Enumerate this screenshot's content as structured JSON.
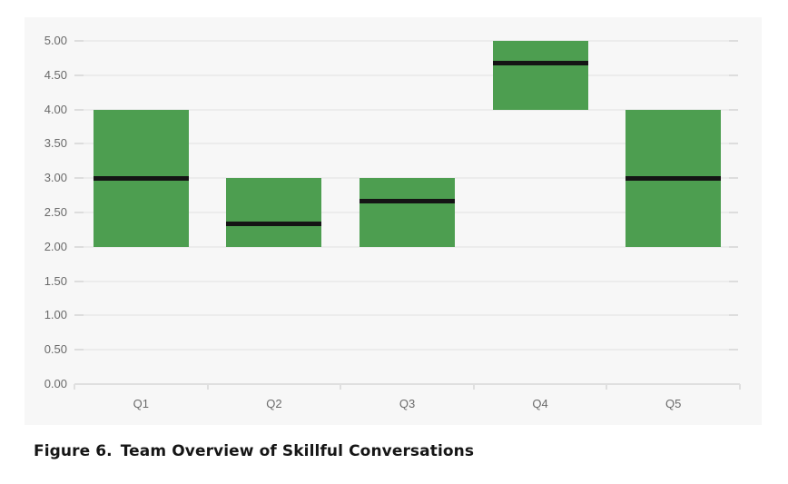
{
  "figure": {
    "label": "Figure 6.",
    "title": "Team Overview of Skillful Conversations"
  },
  "chart_data": {
    "type": "bar",
    "subtype": "floating-range-bars-with-mean-line",
    "title": "Team Overview of Skillful Conversations",
    "xlabel": "",
    "ylabel": "",
    "categories": [
      "Q1",
      "Q2",
      "Q3",
      "Q4",
      "Q5"
    ],
    "bars": [
      {
        "category": "Q1",
        "low": 2.0,
        "high": 4.0,
        "mean": 3.0
      },
      {
        "category": "Q2",
        "low": 2.0,
        "high": 3.0,
        "mean": 2.33
      },
      {
        "category": "Q3",
        "low": 2.0,
        "high": 3.0,
        "mean": 2.67
      },
      {
        "category": "Q4",
        "low": 4.0,
        "high": 5.0,
        "mean": 4.67
      },
      {
        "category": "Q5",
        "low": 2.0,
        "high": 4.0,
        "mean": 3.0
      }
    ],
    "series": [
      {
        "name": "range-low",
        "values": [
          2.0,
          2.0,
          2.0,
          4.0,
          2.0
        ]
      },
      {
        "name": "range-high",
        "values": [
          4.0,
          3.0,
          3.0,
          5.0,
          4.0
        ]
      },
      {
        "name": "mean",
        "values": [
          3.0,
          2.33,
          2.67,
          4.67,
          3.0
        ]
      }
    ],
    "y_axis": {
      "min": 0,
      "max": 5,
      "tick_step": 0.5,
      "tick_labels": [
        "5.00",
        "4.50",
        "4.00",
        "3.50",
        "3.00",
        "2.50",
        "2.00",
        "1.50",
        "1.00",
        "0.50",
        "0.00"
      ]
    },
    "grid": true,
    "legend": false,
    "colors": {
      "bar_fill": "#4d9e50",
      "mean_line": "#141414",
      "panel_background": "#f7f7f7",
      "gridline": "#ececec",
      "gridline_cap": "#dddddd",
      "axis_line": "#dfdfdf",
      "tick_label": "#6a6a6a"
    }
  }
}
